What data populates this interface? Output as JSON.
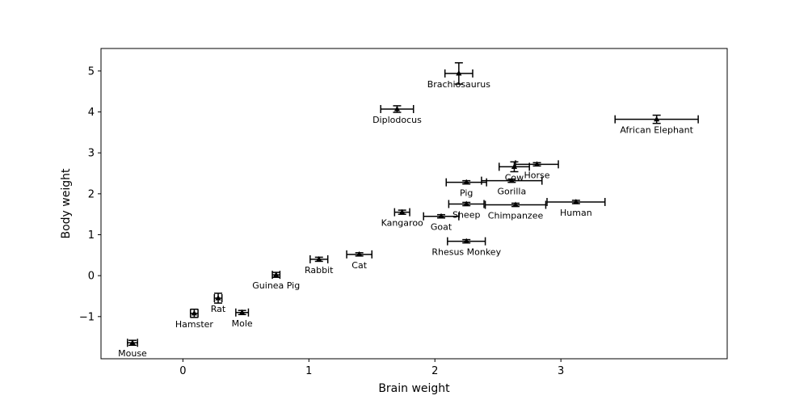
{
  "chart_data": {
    "type": "scatter",
    "xlabel": "Brain weight",
    "ylabel": "Body weight",
    "xlim": [
      -0.65,
      4.32
    ],
    "ylim": [
      -2.03,
      5.55
    ],
    "xticks": [
      0,
      1,
      2,
      3
    ],
    "yticks": [
      -1,
      0,
      1,
      2,
      3,
      4,
      5
    ],
    "grid": false,
    "marker_color": "#000000",
    "points": [
      {
        "name": "Mouse",
        "x": -0.4,
        "y": -1.64,
        "xerr": 0.04,
        "yerr": 0.06,
        "label_side": "below"
      },
      {
        "name": "Hamster",
        "x": 0.09,
        "y": -0.92,
        "xerr": 0.03,
        "yerr": 0.1,
        "label_side": "below"
      },
      {
        "name": "Rat",
        "x": 0.28,
        "y": -0.55,
        "xerr": 0.03,
        "yerr": 0.12,
        "label_side": "below"
      },
      {
        "name": "Mole",
        "x": 0.47,
        "y": -0.9,
        "xerr": 0.05,
        "yerr": 0.05,
        "label_side": "below"
      },
      {
        "name": "Guinea Pig",
        "x": 0.74,
        "y": 0.02,
        "xerr": 0.03,
        "yerr": 0.06,
        "label_side": "below"
      },
      {
        "name": "Rabbit",
        "x": 1.08,
        "y": 0.4,
        "xerr": 0.07,
        "yerr": 0.05,
        "label_side": "below"
      },
      {
        "name": "Cat",
        "x": 1.4,
        "y": 0.52,
        "xerr": 0.1,
        "yerr": 0.04,
        "label_side": "below"
      },
      {
        "name": "Kangaroo",
        "x": 1.74,
        "y": 1.55,
        "xerr": 0.06,
        "yerr": 0.05,
        "label_side": "below"
      },
      {
        "name": "Goat",
        "x": 2.05,
        "y": 1.45,
        "xerr": 0.14,
        "yerr": 0.04,
        "label_side": "below"
      },
      {
        "name": "Sheep",
        "x": 2.25,
        "y": 1.75,
        "xerr": 0.14,
        "yerr": 0.04,
        "label_side": "below"
      },
      {
        "name": "Rhesus Monkey",
        "x": 2.25,
        "y": 0.84,
        "xerr": 0.15,
        "yerr": 0.04,
        "label_side": "below"
      },
      {
        "name": "Pig",
        "x": 2.25,
        "y": 2.28,
        "xerr": 0.16,
        "yerr": 0.04,
        "label_side": "below"
      },
      {
        "name": "Chimpanzee",
        "x": 2.64,
        "y": 1.73,
        "xerr": 0.24,
        "yerr": 0.04,
        "label_side": "below"
      },
      {
        "name": "Human",
        "x": 3.12,
        "y": 1.8,
        "xerr": 0.23,
        "yerr": 0.04,
        "label_side": "below"
      },
      {
        "name": "Gorilla",
        "x": 2.61,
        "y": 2.32,
        "xerr": 0.24,
        "yerr": 0.04,
        "label_side": "below"
      },
      {
        "name": "Cow",
        "x": 2.63,
        "y": 2.66,
        "xerr": 0.12,
        "yerr": 0.12,
        "label_side": "below"
      },
      {
        "name": "Horse",
        "x": 2.81,
        "y": 2.72,
        "xerr": 0.17,
        "yerr": 0.04,
        "label_side": "below"
      },
      {
        "name": "Diplodocus",
        "x": 1.7,
        "y": 4.07,
        "xerr": 0.13,
        "yerr": 0.08,
        "label_side": "below"
      },
      {
        "name": "Brachiosaurus",
        "x": 2.19,
        "y": 4.94,
        "xerr": 0.11,
        "yerr": 0.26,
        "label_side": "below"
      },
      {
        "name": "African Elephant",
        "x": 3.76,
        "y": 3.82,
        "xerr": 0.33,
        "yerr": 0.1,
        "label_side": "below"
      }
    ]
  }
}
